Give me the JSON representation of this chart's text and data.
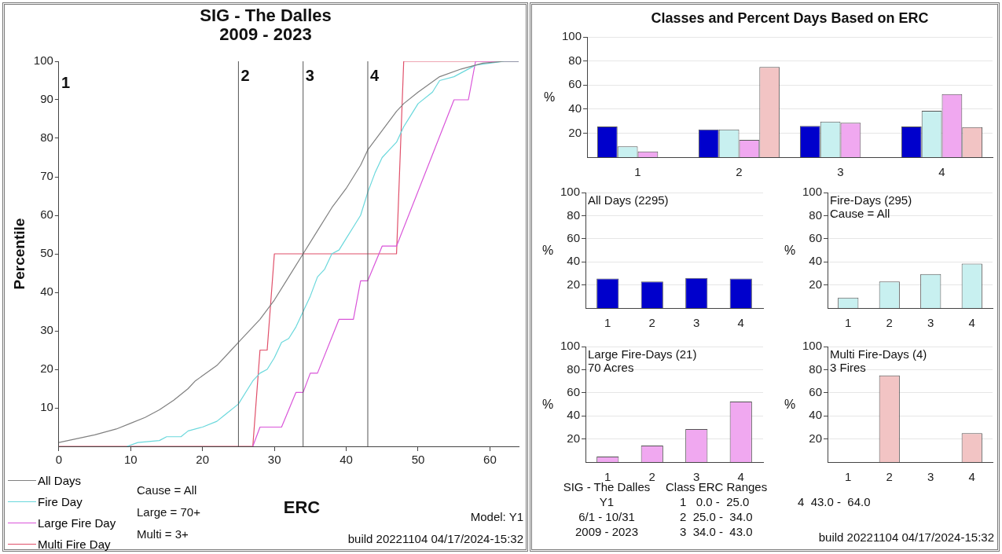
{
  "chart_data": [
    {
      "type": "line",
      "title": "SIG - The Dalles",
      "subtitle": "2009 - 2023",
      "xlabel": "ERC",
      "ylabel": "Percentile",
      "xlim": [
        0,
        64
      ],
      "xticks": [
        0,
        10,
        20,
        30,
        40,
        50,
        60
      ],
      "ylim": [
        0,
        100
      ],
      "yticks": [
        10,
        20,
        30,
        40,
        50,
        60,
        70,
        80,
        90,
        100
      ],
      "legend": "bottom left",
      "ref_lines": [
        {
          "axis": "x",
          "value": 25
        },
        {
          "axis": "x",
          "value": 34
        },
        {
          "axis": "x",
          "value": 43
        }
      ],
      "annotations": [
        "1",
        {
          "text": "2",
          "x": 25,
          "y": 96
        },
        {
          "text": "3",
          "x": 34,
          "y": 96
        },
        {
          "text": "4",
          "x": 43,
          "y": 96
        },
        "Cause = All",
        "Large = 70+",
        "Multi = 3+",
        "Model: Y1",
        "build 20221104 04/17/2024-15:32"
      ],
      "series": [
        {
          "name": "All Days",
          "color": "#808080",
          "x": [
            0,
            5,
            8,
            10,
            12,
            14,
            16,
            18,
            19,
            22,
            24,
            25,
            27,
            28,
            30,
            32,
            34,
            36,
            38,
            40,
            42,
            43,
            45,
            47,
            48,
            50,
            53,
            56,
            59,
            62,
            64
          ],
          "values": [
            1,
            3,
            4.5,
            6,
            7.5,
            9.5,
            12,
            15,
            17,
            21,
            25,
            27,
            31,
            33,
            38,
            44,
            50,
            56,
            62,
            67,
            73,
            77,
            82,
            87,
            89,
            92,
            96,
            98,
            99.5,
            100,
            100
          ]
        },
        {
          "name": "Fire Day",
          "color": "#6ad8dc",
          "x": [
            9.5,
            11,
            14,
            15,
            17,
            18,
            20,
            22,
            23,
            25,
            27,
            28,
            29,
            30,
            31,
            32,
            33,
            34,
            35,
            36,
            37,
            38,
            39,
            40,
            41,
            42,
            43,
            44,
            45,
            46,
            47,
            48,
            49,
            50,
            52,
            53,
            55,
            58,
            60,
            62,
            64
          ],
          "values": [
            0,
            1,
            1.5,
            2.5,
            2.5,
            4,
            5,
            6.5,
            8,
            11,
            17,
            19,
            20,
            23,
            27,
            28,
            31,
            35,
            39,
            44,
            46,
            50,
            51,
            54,
            57,
            60,
            66,
            71,
            75,
            77,
            79,
            83,
            86,
            89,
            92,
            95,
            96,
            99,
            99.5,
            100,
            100
          ]
        },
        {
          "name": "Large Fire Day",
          "color": "#d955d9",
          "x": [
            27,
            28,
            31,
            33,
            34,
            35,
            36,
            39,
            41,
            42,
            43,
            45,
            47,
            55,
            57,
            58,
            64
          ],
          "values": [
            0,
            5,
            5,
            14,
            14,
            19,
            19,
            33,
            33,
            43,
            43,
            52,
            52,
            90,
            90,
            100,
            100
          ]
        },
        {
          "name": "Multi Fire Day",
          "color": "#e0506a",
          "x": [
            0,
            27,
            28,
            29,
            30,
            47,
            48,
            64
          ],
          "values": [
            0,
            0,
            25,
            25,
            50,
            50,
            100,
            100
          ]
        }
      ]
    },
    {
      "type": "bar",
      "title": "Classes and Percent Days Based on ERC",
      "ylabel": "%",
      "categories": [
        "1",
        "2",
        "3",
        "4"
      ],
      "ylim": [
        0,
        100
      ],
      "yticks": [
        20,
        40,
        60,
        80,
        100
      ],
      "grid": "y",
      "series": [
        {
          "color": "#0000cc",
          "values": [
            25.5,
            23,
            26,
            25.5
          ]
        },
        {
          "color": "#c8f0f0",
          "values": [
            9,
            23,
            29.5,
            38.5
          ]
        },
        {
          "color": "#f0a8f0",
          "values": [
            4.8,
            14.3,
            28.6,
            52.4
          ]
        },
        {
          "color": "#f2c4c4",
          "values": [
            0,
            75,
            0,
            25
          ]
        }
      ]
    },
    {
      "type": "bar",
      "title": "All Days (2295)",
      "ylabel": "%",
      "categories": [
        "1",
        "2",
        "3",
        "4"
      ],
      "ylim": [
        0,
        100
      ],
      "yticks": [
        20,
        40,
        60,
        80,
        100
      ],
      "grid": "y",
      "series": [
        {
          "color": "#0000cc",
          "values": [
            25.5,
            23,
            26,
            25.5
          ]
        }
      ]
    },
    {
      "type": "bar",
      "title": "Fire-Days (295)",
      "subtitle": "Cause = All",
      "ylabel": "%",
      "categories": [
        "1",
        "2",
        "3",
        "4"
      ],
      "ylim": [
        0,
        100
      ],
      "yticks": [
        20,
        40,
        60,
        80,
        100
      ],
      "grid": "y",
      "series": [
        {
          "color": "#c8f0f0",
          "values": [
            9,
            23,
            29.5,
            38.5
          ]
        }
      ]
    },
    {
      "type": "bar",
      "title": "Large Fire-Days (21)",
      "subtitle": "70 Acres",
      "ylabel": "%",
      "categories": [
        "1",
        "2",
        "3",
        "4"
      ],
      "ylim": [
        0,
        100
      ],
      "yticks": [
        20,
        40,
        60,
        80,
        100
      ],
      "grid": "y",
      "series": [
        {
          "color": "#f0a8f0",
          "values": [
            4.8,
            14.3,
            28.6,
            52.4
          ]
        }
      ]
    },
    {
      "type": "bar",
      "title": "Multi Fire-Days (4)",
      "subtitle": "3 Fires",
      "ylabel": "%",
      "categories": [
        "1",
        "2",
        "3",
        "4"
      ],
      "ylim": [
        0,
        100
      ],
      "yticks": [
        20,
        40,
        60,
        80,
        100
      ],
      "grid": "y",
      "series": [
        {
          "color": "#f2c4c4",
          "values": [
            0,
            75,
            0,
            25
          ]
        }
      ]
    },
    {
      "type": "other",
      "annotations": [
        "SIG - The Dalles",
        "Y1",
        "6/1 - 10/31",
        "2009 - 2023",
        "Class ERC Ranges",
        "1   0.0 -  25.0",
        "2  25.0 -  34.0",
        "3  34.0 -  43.0",
        "4  43.0 -  64.0",
        "build 20221104 04/17/2024-15:32"
      ]
    }
  ]
}
